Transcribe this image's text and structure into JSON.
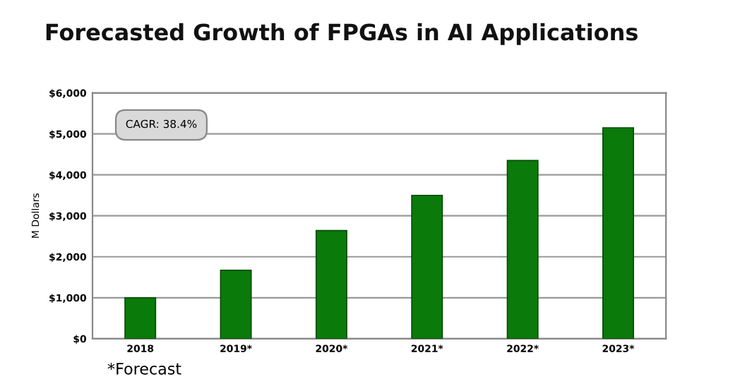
{
  "chart_data": {
    "type": "bar",
    "title": "Forecasted Growth of FPGAs in AI Applications",
    "ylabel": "M Dollars",
    "categories": [
      "2018",
      "2019*",
      "2020*",
      "2021*",
      "2022*",
      "2023*"
    ],
    "values": [
      1000,
      1670,
      2640,
      3500,
      4350,
      5150
    ],
    "color": "#0a7a0a",
    "ylim": [
      0,
      6000
    ],
    "yticks": [
      {
        "value": 0,
        "label": "$0"
      },
      {
        "value": 1000,
        "label": "$1,000"
      },
      {
        "value": 2000,
        "label": "$2,000"
      },
      {
        "value": 3000,
        "label": "$3,000"
      },
      {
        "value": 4000,
        "label": "$4,000"
      },
      {
        "value": 5000,
        "label": "$5,000"
      },
      {
        "value": 6000,
        "label": "$6,000"
      }
    ],
    "grid": "y",
    "legend": false,
    "annotations": [
      "CAGR: 38.4%",
      "*Forecast"
    ]
  }
}
